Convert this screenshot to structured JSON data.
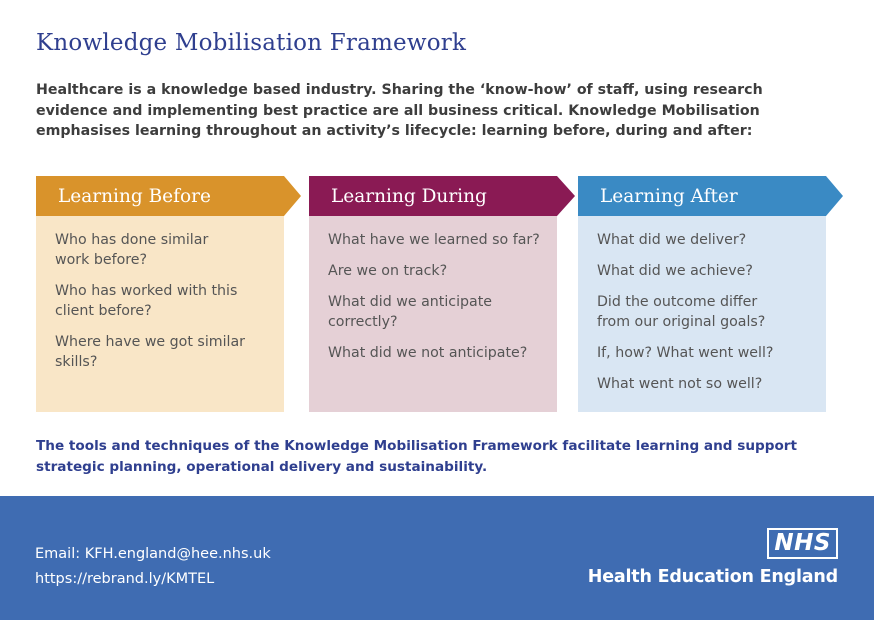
{
  "title": "Knowledge Mobilisation Framework",
  "intro": "Healthcare is a knowledge based industry. Sharing the ‘know-how’ of staff, using research evidence and implementing best practice are all business critical. Knowledge Mobilisation emphasises learning throughout an activity’s lifecycle: learning before, during and after:",
  "columns": [
    {
      "heading": "Learning Before",
      "header_color": "#d9932b",
      "box_color": "#f9e6c7",
      "items": [
        "Who has done similar work before?",
        "Who has worked with this client before?",
        "Where have we got similar skills?"
      ]
    },
    {
      "heading": "Learning During",
      "header_color": "#8a1a54",
      "box_color": "#e5d0d6",
      "items": [
        "What have we learned so far?",
        "Are we on track?",
        "What did we anticipate correctly?",
        "What did we not anticipate?"
      ]
    },
    {
      "heading": "Learning After",
      "header_color": "#3a8ac4",
      "box_color": "#d9e6f3",
      "items": [
        "What did we deliver?",
        "What did we achieve?",
        "Did the outcome differ from our original goals?",
        "If, how? What went well?",
        "What went not so well?"
      ]
    }
  ],
  "closing": "The tools and techniques of the Knowledge Mobilisation Framework facilitate learning and support strategic planning, operational delivery and sustainability.",
  "footer": {
    "email": "Email: KFH.england@hee.nhs.uk",
    "url": "https://rebrand.ly/KMTEL",
    "nhs_logo": "NHS",
    "org_name": "Health Education England",
    "background": "#3f6cb2"
  }
}
